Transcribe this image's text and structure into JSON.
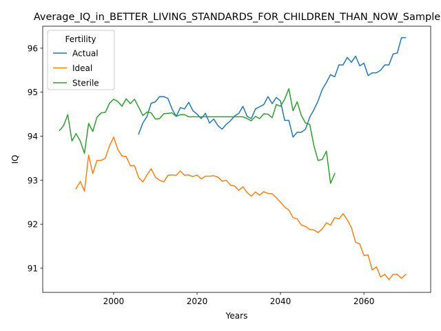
{
  "chart_data": {
    "type": "line",
    "title": "Average_IQ_in_BETTER_LIVING_STANDARDS_FOR_CHILDREN_THAN_NOW_Sample",
    "xlabel": "Years",
    "ylabel": "IQ",
    "xlim": [
      1983,
      2076
    ],
    "ylim": [
      90.45,
      96.5
    ],
    "xticks": [
      2000,
      2020,
      2040,
      2060
    ],
    "yticks": [
      91,
      92,
      93,
      94,
      95,
      96
    ],
    "grid": false,
    "legend": {
      "title": "Fertility",
      "position": "top-left"
    },
    "series": [
      {
        "name": "Actual",
        "color": "#1f77b4",
        "x": [
          2006,
          2007,
          2008,
          2009,
          2010,
          2011,
          2012,
          2013,
          2014,
          2015,
          2016,
          2017,
          2018,
          2019,
          2020,
          2021,
          2022,
          2023,
          2024,
          2025,
          2026,
          2027,
          2028,
          2029,
          2030,
          2031,
          2032,
          2033,
          2034,
          2035,
          2036,
          2037,
          2038,
          2039,
          2040,
          2041,
          2042,
          2043,
          2044,
          2045,
          2046,
          2047,
          2048,
          2049,
          2050,
          2051,
          2052,
          2053,
          2054,
          2055,
          2056,
          2057,
          2058,
          2059,
          2060,
          2061,
          2062,
          2063,
          2064,
          2065,
          2066,
          2067,
          2068,
          2069,
          2070
        ],
        "y": [
          94.05,
          94.3,
          94.45,
          94.75,
          94.78,
          94.9,
          94.9,
          94.86,
          94.62,
          94.45,
          94.65,
          94.62,
          94.77,
          94.58,
          94.5,
          94.4,
          94.52,
          94.3,
          94.39,
          94.24,
          94.16,
          94.27,
          94.35,
          94.46,
          94.52,
          94.68,
          94.45,
          94.4,
          94.62,
          94.67,
          94.72,
          94.9,
          94.74,
          94.88,
          94.8,
          94.36,
          94.36,
          93.98,
          94.09,
          94.09,
          94.16,
          94.43,
          94.6,
          94.8,
          95.06,
          95.22,
          95.4,
          95.35,
          95.62,
          95.62,
          95.79,
          95.68,
          95.82,
          95.6,
          95.66,
          95.38,
          95.44,
          95.44,
          95.5,
          95.62,
          95.62,
          95.87,
          95.89,
          96.24,
          96.24
        ]
      },
      {
        "name": "Ideal",
        "color": "#ff7f0e",
        "x": [
          1991,
          1992,
          1993,
          1994,
          1995,
          1996,
          1997,
          1998,
          1999,
          2000,
          2001,
          2002,
          2003,
          2004,
          2005,
          2006,
          2007,
          2008,
          2009,
          2010,
          2011,
          2012,
          2013,
          2014,
          2015,
          2016,
          2017,
          2018,
          2019,
          2020,
          2021,
          2022,
          2023,
          2024,
          2025,
          2026,
          2027,
          2028,
          2029,
          2030,
          2031,
          2032,
          2033,
          2034,
          2035,
          2036,
          2037,
          2038,
          2039,
          2040,
          2041,
          2042,
          2043,
          2044,
          2045,
          2046,
          2047,
          2048,
          2049,
          2050,
          2051,
          2052,
          2053,
          2054,
          2055,
          2056,
          2057,
          2058,
          2059,
          2060,
          2061,
          2062,
          2063,
          2064,
          2065,
          2066,
          2067,
          2068,
          2069,
          2070
        ],
        "y": [
          92.81,
          92.97,
          92.75,
          93.57,
          93.15,
          93.45,
          93.45,
          93.5,
          93.78,
          93.98,
          93.7,
          93.55,
          93.54,
          93.33,
          93.33,
          93.06,
          92.96,
          93.12,
          93.26,
          93.07,
          93.0,
          92.96,
          93.11,
          93.12,
          93.11,
          93.21,
          93.11,
          93.12,
          93.08,
          93.12,
          93.03,
          93.09,
          93.09,
          93.1,
          93.07,
          92.98,
          93.0,
          92.89,
          92.87,
          92.77,
          92.85,
          92.72,
          92.64,
          92.73,
          92.66,
          92.74,
          92.7,
          92.69,
          92.6,
          92.5,
          92.39,
          92.32,
          92.15,
          92.12,
          91.98,
          91.95,
          91.88,
          91.87,
          91.81,
          91.89,
          92.03,
          91.98,
          92.15,
          92.12,
          92.24,
          92.1,
          91.92,
          91.59,
          91.55,
          91.29,
          91.3,
          90.96,
          91.03,
          90.8,
          90.86,
          90.74,
          90.86,
          90.86,
          90.77,
          90.86
        ]
      },
      {
        "name": "Sterile",
        "color": "#2ca02c",
        "x": [
          1987,
          1988,
          1989,
          1990,
          1991,
          1992,
          1993,
          1994,
          1995,
          1996,
          1997,
          1998,
          1999,
          2000,
          2001,
          2002,
          2003,
          2004,
          2005,
          2006,
          2007,
          2008,
          2009,
          2010,
          2011,
          2012,
          2013,
          2014,
          2015,
          2016,
          2017,
          2018,
          2019,
          2020,
          2021,
          2022,
          2023,
          2024,
          2025,
          2026,
          2027,
          2028,
          2029,
          2030,
          2031,
          2032,
          2033,
          2034,
          2035,
          2036,
          2037,
          2038,
          2039,
          2040,
          2041,
          2042,
          2043,
          2044,
          2045,
          2046,
          2047,
          2048,
          2049,
          2050,
          2051,
          2052,
          2053
        ],
        "y": [
          94.13,
          94.24,
          94.49,
          93.89,
          94.06,
          93.89,
          93.61,
          94.29,
          94.11,
          94.43,
          94.53,
          94.54,
          94.75,
          94.84,
          94.79,
          94.68,
          94.85,
          94.74,
          94.84,
          94.66,
          94.47,
          94.55,
          94.53,
          94.39,
          94.4,
          94.51,
          94.52,
          94.53,
          94.45,
          94.49,
          94.49,
          94.44,
          94.44,
          94.44,
          94.44,
          94.44,
          94.44,
          94.44,
          94.44,
          94.44,
          94.44,
          94.44,
          94.44,
          94.44,
          94.44,
          94.4,
          94.35,
          94.45,
          94.4,
          94.51,
          94.5,
          94.42,
          94.72,
          94.68,
          94.84,
          95.08,
          94.58,
          94.78,
          94.47,
          94.3,
          94.27,
          93.79,
          93.45,
          93.47,
          93.66,
          92.93,
          93.15
        ]
      }
    ]
  }
}
